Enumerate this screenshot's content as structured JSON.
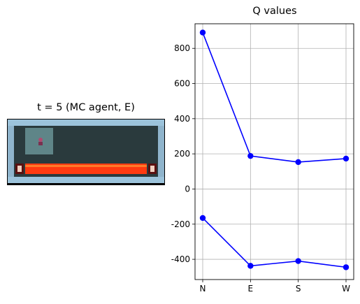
{
  "env_panel": {
    "title": "t = 5 (MC agent, E)",
    "icon": "gridworld-lava-environment"
  },
  "chart_data": {
    "type": "line",
    "title": "Q values",
    "xlabel": "",
    "ylabel": "",
    "categories": [
      "N",
      "E",
      "S",
      "W"
    ],
    "series": [
      {
        "values": [
          890,
          188,
          153,
          173
        ]
      },
      {
        "values": [
          -165,
          -437,
          -410,
          -445
        ]
      }
    ],
    "ylim": [
      -515,
      940
    ],
    "yticks": [
      -400,
      -200,
      0,
      200,
      400,
      600,
      800
    ],
    "grid": true,
    "line_color": "#0000ff",
    "marker": "circle"
  }
}
